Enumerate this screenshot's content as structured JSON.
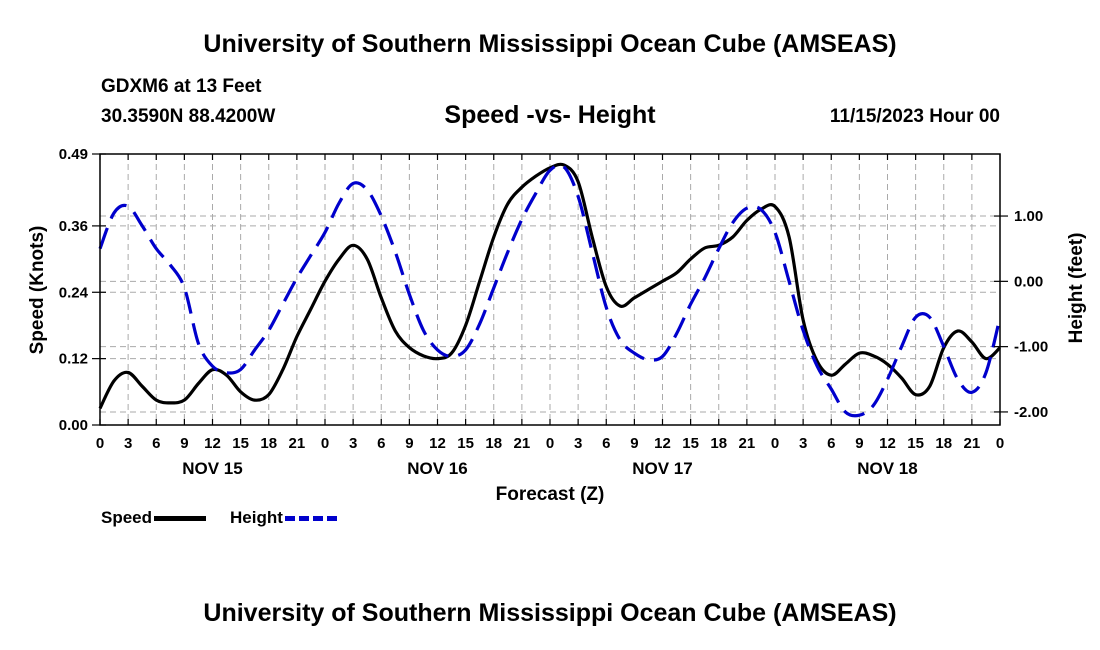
{
  "header": {
    "title": "University of Southern Mississippi Ocean Cube (AMSEAS)",
    "station": "GDXM6 at 13 Feet",
    "coords": "30.3590N  88.4200W",
    "date": "11/15/2023 Hour 00"
  },
  "footer": {
    "title": "University of Southern Mississippi Ocean Cube (AMSEAS)"
  },
  "colors": {
    "speed": "#000000",
    "height": "#0000cc",
    "grid": "#aaaaaa"
  },
  "chart_data": {
    "type": "line",
    "title": "Speed -vs- Height",
    "xlabel": "Forecast (Z)",
    "ylabel": "Speed (Knots)",
    "y2label": "Height (feet)",
    "xlim": [
      0,
      96
    ],
    "ylim": [
      0,
      0.49
    ],
    "y2lim": [
      -2.2,
      1.95
    ],
    "yticks": [
      0.0,
      0.12,
      0.24,
      0.36,
      0.49
    ],
    "yticklabels": [
      "0.00",
      "0.12",
      "0.24",
      "0.36",
      "0.49"
    ],
    "y2ticks": [
      1.0,
      0.0,
      -1.0,
      -2.0
    ],
    "y2ticklabels": [
      "1.00",
      "0.00",
      "-1.00",
      "-2.00"
    ],
    "xticks": [
      0,
      3,
      6,
      9,
      12,
      15,
      18,
      21,
      24,
      27,
      30,
      33,
      36,
      39,
      42,
      45,
      48,
      51,
      54,
      57,
      60,
      63,
      66,
      69,
      72,
      75,
      78,
      81,
      84,
      87,
      90,
      93,
      96
    ],
    "xticklabels": [
      "0",
      "3",
      "6",
      "9",
      "12",
      "15",
      "18",
      "21",
      "0",
      "3",
      "6",
      "9",
      "12",
      "15",
      "18",
      "21",
      "0",
      "3",
      "6",
      "9",
      "12",
      "15",
      "18",
      "21",
      "0",
      "3",
      "6",
      "9",
      "12",
      "15",
      "18",
      "21",
      "0"
    ],
    "day_labels": [
      {
        "x": 12,
        "label": "NOV 15"
      },
      {
        "x": 36,
        "label": "NOV 16"
      },
      {
        "x": 60,
        "label": "NOV 17"
      },
      {
        "x": 84,
        "label": "NOV 18"
      }
    ],
    "legend": [
      "Speed",
      "Height"
    ],
    "legend_position": "bottom-left",
    "series": [
      {
        "name": "Speed",
        "axis": "left",
        "style": "solid",
        "x": [
          0,
          1.5,
          3,
          4.5,
          6,
          7.5,
          9,
          10.5,
          12,
          13.5,
          15,
          16.5,
          18,
          19.5,
          21,
          22.5,
          24,
          25.5,
          27,
          28.5,
          30,
          31.5,
          33,
          34.5,
          36,
          37.5,
          39,
          40.5,
          42,
          43.5,
          45,
          46.5,
          48,
          49.5,
          51,
          52.5,
          54,
          55.5,
          57,
          58.5,
          60,
          61.5,
          63,
          64.5,
          66,
          67.5,
          69,
          70.5,
          72,
          73.5,
          75,
          76.5,
          78,
          79.5,
          81,
          82.5,
          84,
          85.5,
          87,
          88.5,
          90,
          91.5,
          93,
          94.5,
          96
        ],
        "values": [
          0.03,
          0.08,
          0.095,
          0.07,
          0.045,
          0.04,
          0.045,
          0.075,
          0.1,
          0.09,
          0.06,
          0.045,
          0.055,
          0.1,
          0.16,
          0.21,
          0.26,
          0.3,
          0.325,
          0.3,
          0.23,
          0.17,
          0.14,
          0.125,
          0.12,
          0.13,
          0.18,
          0.26,
          0.34,
          0.4,
          0.43,
          0.45,
          0.465,
          0.47,
          0.44,
          0.34,
          0.25,
          0.215,
          0.23,
          0.245,
          0.26,
          0.275,
          0.3,
          0.32,
          0.325,
          0.34,
          0.37,
          0.39,
          0.395,
          0.34,
          0.19,
          0.115,
          0.09,
          0.11,
          0.13,
          0.125,
          0.11,
          0.085,
          0.055,
          0.07,
          0.14,
          0.17,
          0.15,
          0.12,
          0.14
        ]
      },
      {
        "name": "Height",
        "axis": "right",
        "style": "dashed",
        "x": [
          0,
          1.5,
          3,
          4.5,
          6,
          7.5,
          9,
          10.5,
          12,
          13.5,
          15,
          16.5,
          18,
          19.5,
          21,
          22.5,
          24,
          25.5,
          27,
          28.5,
          30,
          31.5,
          33,
          34.5,
          36,
          37.5,
          39,
          40.5,
          42,
          43.5,
          45,
          46.5,
          48,
          49.5,
          51,
          52.5,
          54,
          55.5,
          57,
          58.5,
          60,
          61.5,
          63,
          64.5,
          66,
          67.5,
          69,
          70.5,
          72,
          73.5,
          75,
          76.5,
          78,
          79.5,
          81,
          82.5,
          84,
          85.5,
          87,
          88.5,
          90,
          91.5,
          93,
          94.5,
          96
        ],
        "values": [
          0.5,
          1.05,
          1.15,
          0.85,
          0.5,
          0.25,
          -0.1,
          -0.95,
          -1.3,
          -1.4,
          -1.35,
          -1.05,
          -0.75,
          -0.35,
          0.05,
          0.4,
          0.75,
          1.2,
          1.5,
          1.4,
          1.0,
          0.45,
          -0.2,
          -0.75,
          -1.05,
          -1.15,
          -1.05,
          -0.65,
          -0.1,
          0.45,
          0.95,
          1.35,
          1.7,
          1.75,
          1.3,
          0.45,
          -0.4,
          -0.9,
          -1.1,
          -1.2,
          -1.15,
          -0.8,
          -0.35,
          0.05,
          0.5,
          0.9,
          1.12,
          1.1,
          0.75,
          0.0,
          -0.75,
          -1.3,
          -1.65,
          -2.0,
          -2.05,
          -1.9,
          -1.5,
          -1.0,
          -0.55,
          -0.55,
          -1.0,
          -1.5,
          -1.7,
          -1.4,
          -0.55
        ]
      }
    ]
  }
}
